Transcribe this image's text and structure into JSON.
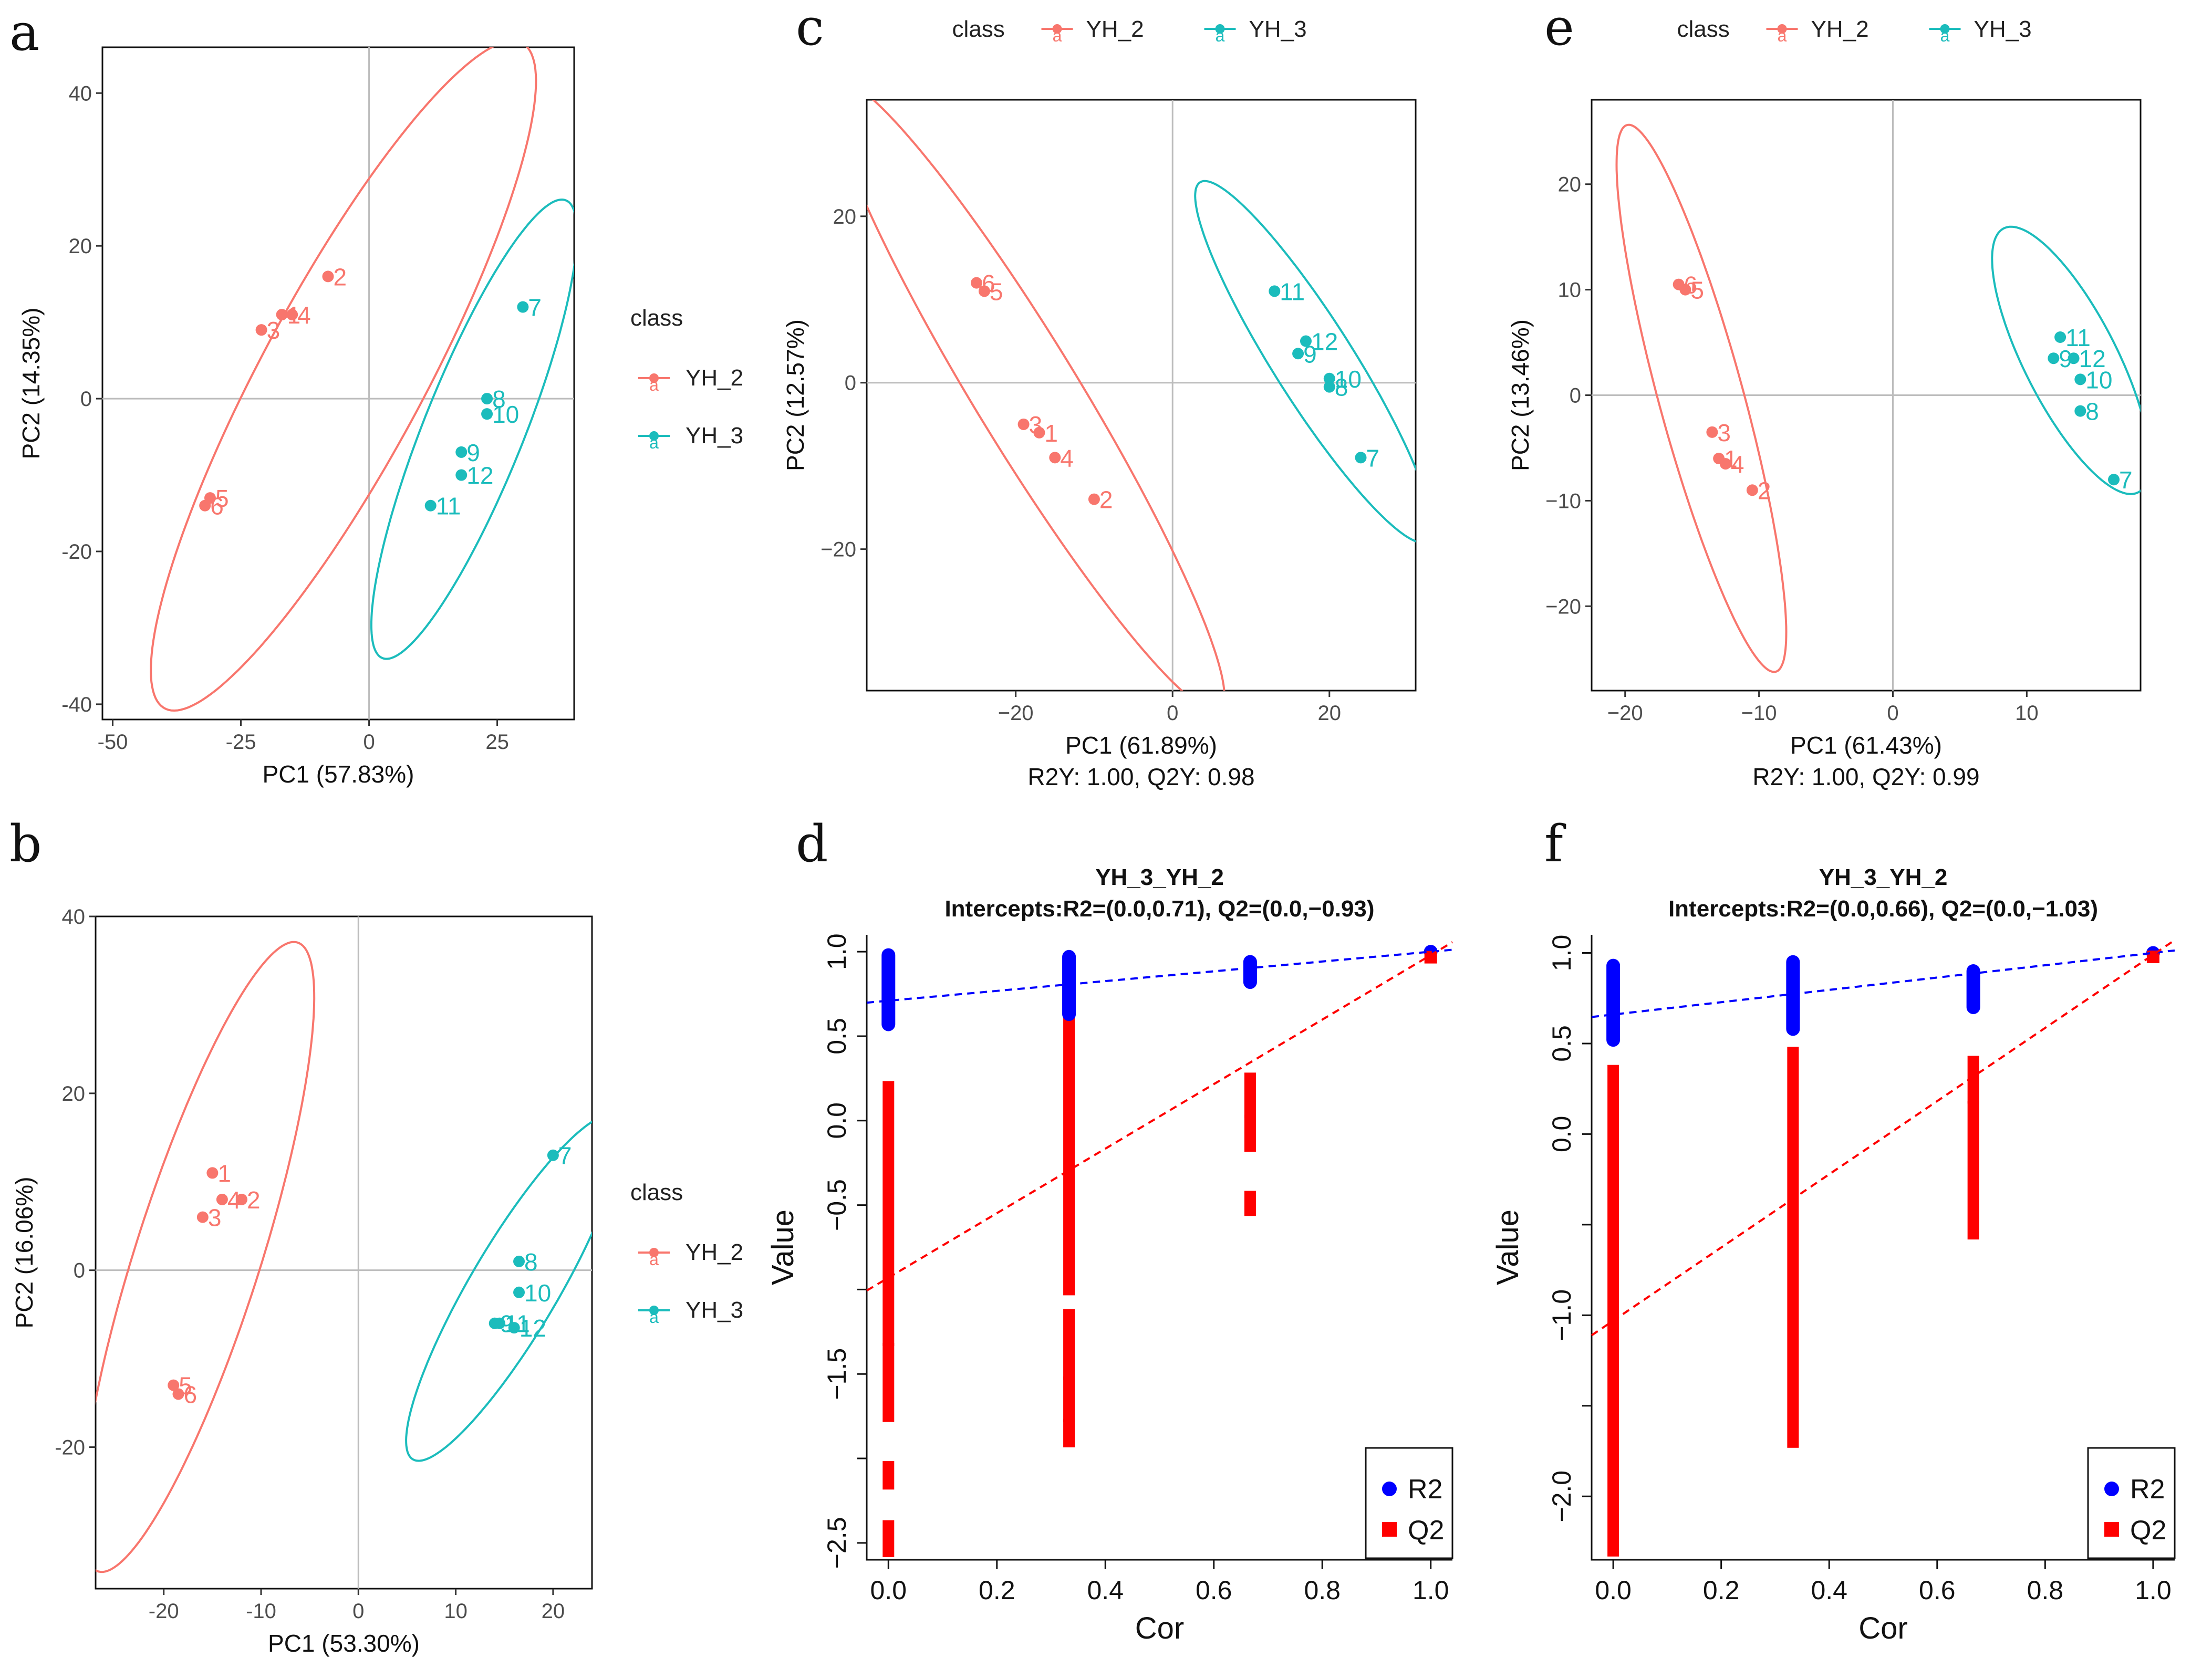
{
  "colors": {
    "yh2": "#F8766D",
    "yh3": "#1BBCBC",
    "r2": "#0000FF",
    "q2": "#FF0000",
    "refline": "#bdbdbd"
  },
  "chart_data": [
    {
      "id": "a",
      "letter": "a",
      "type": "scatter",
      "xlabel": "PC1 (57.83%)",
      "ylabel": "PC2 (14.35%)",
      "subtitle": "",
      "xlim": [
        -52,
        40
      ],
      "ylim": [
        -42,
        46
      ],
      "xticks": [
        -50,
        -25,
        0,
        25
      ],
      "xtick_labels": [
        "-50",
        "-25",
        "0",
        "25"
      ],
      "yticks": [
        -40,
        -20,
        0,
        20,
        40
      ],
      "ytick_labels": [
        "-40",
        "-20",
        "0",
        "20",
        "40"
      ],
      "legend_position": "right",
      "legend": {
        "title": "class",
        "entries": [
          "YH_2",
          "YH_3"
        ],
        "glyph": "a"
      },
      "series": [
        {
          "name": "YH_2",
          "color_key": "yh2",
          "points": [
            {
              "label": "2",
              "x": -8,
              "y": 16
            },
            {
              "label": "1",
              "x": -17,
              "y": 11
            },
            {
              "label": "4",
              "x": -15,
              "y": 11
            },
            {
              "label": "3",
              "x": -21,
              "y": 9
            },
            {
              "label": "5",
              "x": -31,
              "y": -13
            },
            {
              "label": "6",
              "x": -32,
              "y": -14
            }
          ],
          "ellipse": {
            "cx": -5,
            "cy": 3,
            "rx": 56,
            "ry": 14,
            "angle": 50
          }
        },
        {
          "name": "YH_3",
          "color_key": "yh3",
          "points": [
            {
              "label": "7",
              "x": 30,
              "y": 12
            },
            {
              "label": "8",
              "x": 23,
              "y": 0
            },
            {
              "label": "10",
              "x": 23,
              "y": -2
            },
            {
              "label": "9",
              "x": 18,
              "y": -7
            },
            {
              "label": "12",
              "x": 18,
              "y": -10
            },
            {
              "label": "11",
              "x": 12,
              "y": -14
            }
          ],
          "ellipse": {
            "cx": 20.5,
            "cy": -4,
            "rx": 35,
            "ry": 9,
            "angle": 58
          }
        }
      ]
    },
    {
      "id": "b",
      "letter": "b",
      "type": "scatter",
      "xlabel": "PC1 (53.30%)",
      "ylabel": "PC2 (16.06%)",
      "subtitle": "",
      "xlim": [
        -27,
        24
      ],
      "ylim": [
        -36,
        40
      ],
      "xticks": [
        -20,
        -10,
        0,
        10,
        20
      ],
      "xtick_labels": [
        "-20",
        "-10",
        "0",
        "10",
        "20"
      ],
      "yticks": [
        -20,
        0,
        20,
        40
      ],
      "ytick_labels": [
        "-20",
        "0",
        "20",
        "40"
      ],
      "legend_position": "right",
      "legend": {
        "title": "class",
        "entries": [
          "YH_2",
          "YH_3"
        ],
        "glyph": "a"
      },
      "series": [
        {
          "name": "YH_2",
          "color_key": "yh2",
          "points": [
            {
              "label": "1",
              "x": -15,
              "y": 11
            },
            {
              "label": "4",
              "x": -14,
              "y": 8
            },
            {
              "label": "2",
              "x": -12,
              "y": 8
            },
            {
              "label": "3",
              "x": -16,
              "y": 6
            },
            {
              "label": "5",
              "x": -19,
              "y": -13
            },
            {
              "label": "6",
              "x": -18.5,
              "y": -14
            }
          ],
          "ellipse": {
            "cx": -16.5,
            "cy": 1.5,
            "rx": 37,
            "ry": 6.5,
            "angle": 74
          }
        },
        {
          "name": "YH_3",
          "color_key": "yh3",
          "points": [
            {
              "label": "7",
              "x": 20,
              "y": 13
            },
            {
              "label": "8",
              "x": 16.5,
              "y": 1
            },
            {
              "label": "10",
              "x": 16.5,
              "y": -2.5
            },
            {
              "label": "9",
              "x": 14,
              "y": -6
            },
            {
              "label": "11",
              "x": 14.5,
              "y": -6
            },
            {
              "label": "12",
              "x": 16,
              "y": -6.5
            }
          ],
          "ellipse": {
            "cx": 16,
            "cy": -2,
            "rx": 22,
            "ry": 4.6,
            "angle": 62
          }
        }
      ]
    },
    {
      "id": "c",
      "letter": "c",
      "type": "scatter",
      "xlabel": "PC1 (61.89%)",
      "ylabel": "PC2 (12.57%)",
      "subtitle": "R2Y: 1.00, Q2Y: 0.98",
      "xlim": [
        -39,
        31
      ],
      "ylim": [
        -37,
        34
      ],
      "xticks": [
        -20,
        0,
        20
      ],
      "xtick_labels": [
        "−20",
        "0",
        "20"
      ],
      "yticks": [
        -20,
        0,
        20
      ],
      "ytick_labels": [
        "−20",
        "0",
        "20"
      ],
      "legend_position": "top",
      "legend": {
        "title": "class",
        "entries": [
          "YH_2",
          "YH_3"
        ],
        "glyph": "a"
      },
      "series": [
        {
          "name": "YH_2",
          "color_key": "yh2",
          "points": [
            {
              "label": "6",
              "x": -25,
              "y": 12
            },
            {
              "label": "5",
              "x": -24,
              "y": 11
            },
            {
              "label": "3",
              "x": -19,
              "y": -5
            },
            {
              "label": "1",
              "x": -17,
              "y": -6
            },
            {
              "label": "4",
              "x": -15,
              "y": -9
            },
            {
              "label": "2",
              "x": -10,
              "y": -14
            }
          ],
          "ellipse": {
            "cx": -18.5,
            "cy": -1.5,
            "rx": 45,
            "ry": 6.5,
            "angle": -57
          }
        },
        {
          "name": "YH_3",
          "color_key": "yh3",
          "points": [
            {
              "label": "11",
              "x": 13,
              "y": 11
            },
            {
              "label": "12",
              "x": 17,
              "y": 5
            },
            {
              "label": "9",
              "x": 16,
              "y": 3.5
            },
            {
              "label": "10",
              "x": 20,
              "y": 0.5
            },
            {
              "label": "8",
              "x": 20,
              "y": -0.5
            },
            {
              "label": "7",
              "x": 24,
              "y": -9
            }
          ],
          "ellipse": {
            "cx": 18,
            "cy": 2.5,
            "rx": 26,
            "ry": 5,
            "angle": -56
          }
        }
      ]
    },
    {
      "id": "e",
      "letter": "e",
      "type": "scatter",
      "xlabel": "PC1 (61.43%)",
      "ylabel": "PC2 (13.46%)",
      "subtitle": "R2Y: 1.00, Q2Y: 0.99",
      "xlim": [
        -22.5,
        18.5
      ],
      "ylim": [
        -28,
        28
      ],
      "xticks": [
        -20,
        -10,
        0,
        10
      ],
      "xtick_labels": [
        "−20",
        "−10",
        "0",
        "10"
      ],
      "yticks": [
        -20,
        -10,
        0,
        10,
        20
      ],
      "ytick_labels": [
        "−20",
        "−10",
        "0",
        "10",
        "20"
      ],
      "legend_position": "top",
      "legend": {
        "title": "class",
        "entries": [
          "YH_2",
          "YH_3"
        ],
        "glyph": "a"
      },
      "series": [
        {
          "name": "YH_2",
          "color_key": "yh2",
          "points": [
            {
              "label": "6",
              "x": -16,
              "y": 10.5
            },
            {
              "label": "5",
              "x": -15.5,
              "y": 10
            },
            {
              "label": "3",
              "x": -13.5,
              "y": -3.5
            },
            {
              "label": "1",
              "x": -13,
              "y": -6
            },
            {
              "label": "4",
              "x": -12.5,
              "y": -6.5
            },
            {
              "label": "2",
              "x": -10.5,
              "y": -9
            }
          ],
          "ellipse": {
            "cx": -14.3,
            "cy": -0.3,
            "rx": 26.5,
            "ry": 3.2,
            "angle": -78
          }
        },
        {
          "name": "YH_3",
          "color_key": "yh3",
          "points": [
            {
              "label": "11",
              "x": 12.5,
              "y": 5.5
            },
            {
              "label": "9",
              "x": 12,
              "y": 3.5
            },
            {
              "label": "12",
              "x": 13.5,
              "y": 3.5
            },
            {
              "label": "10",
              "x": 14,
              "y": 1.5
            },
            {
              "label": "8",
              "x": 14,
              "y": -1.5
            },
            {
              "label": "7",
              "x": 16.5,
              "y": -8
            }
          ],
          "ellipse": {
            "cx": 13.3,
            "cy": 3.3,
            "rx": 13.5,
            "ry": 3.6,
            "angle": -69
          }
        }
      ]
    },
    {
      "id": "d",
      "letter": "d",
      "type": "scatter",
      "title": "YH_3_YH_2",
      "subtitle": "Intercepts:R2=(0.0,0.71), Q2=(0.0,−0.93)",
      "xlabel": "Cor",
      "ylabel": "Value",
      "xlim": [
        -0.04,
        1.04
      ],
      "ylim": [
        -2.6,
        1.1
      ],
      "xticks": [
        0,
        0.2,
        0.4,
        0.6,
        0.8,
        1.0
      ],
      "xtick_labels": [
        "0.0",
        "0.2",
        "0.4",
        "0.6",
        "0.8",
        "1.0"
      ],
      "yticks": [
        1.0,
        0.5,
        0.0,
        -0.5,
        -1.0,
        -1.5,
        -2.0,
        -2.5
      ],
      "ytick_labels": [
        "1.0",
        "0.5",
        "0.0",
        "−0.5",
        "",
        "−1.5",
        "",
        "−2.5"
      ],
      "legend_position": "bottom-right",
      "legend": {
        "entries": [
          "R2",
          "Q2"
        ]
      },
      "r2_clusters": [
        {
          "x": 0.0,
          "min": 0.57,
          "max": 0.98
        },
        {
          "x": 0.333,
          "min": 0.63,
          "max": 0.97
        },
        {
          "x": 0.667,
          "min": 0.82,
          "max": 0.94
        }
      ],
      "q2_clusters": [
        {
          "x": 0.0,
          "segments": [
            [
              0.2,
              -1.3
            ],
            [
              -1.35,
              -1.75
            ],
            [
              -2.05,
              -2.15
            ],
            [
              -2.4,
              -2.55
            ]
          ]
        },
        {
          "x": 0.333,
          "segments": [
            [
              0.65,
              -1.0
            ],
            [
              -1.15,
              -1.5
            ],
            [
              -1.55,
              -1.75
            ],
            [
              -1.8,
              -1.9
            ]
          ]
        },
        {
          "x": 0.667,
          "segments": [
            [
              0.25,
              0.05
            ],
            [
              0.0,
              -0.15
            ],
            [
              -0.45,
              -0.53
            ]
          ]
        }
      ],
      "r2_orig": 1.0,
      "q2_orig": 0.98,
      "r2_line": {
        "intercept": 0.71,
        "slope": 0.29
      },
      "q2_line": {
        "intercept": -0.93,
        "slope": 1.91
      }
    },
    {
      "id": "f",
      "letter": "f",
      "type": "scatter",
      "title": "YH_3_YH_2",
      "subtitle": "Intercepts:R2=(0.0,0.66), Q2=(0.0,−1.03)",
      "xlabel": "Cor",
      "ylabel": "Value",
      "xlim": [
        -0.04,
        1.04
      ],
      "ylim": [
        -2.35,
        1.1
      ],
      "xticks": [
        0,
        0.2,
        0.4,
        0.6,
        0.8,
        1.0
      ],
      "xtick_labels": [
        "0.0",
        "0.2",
        "0.4",
        "0.6",
        "0.8",
        "1.0"
      ],
      "yticks": [
        1.0,
        0.5,
        0.0,
        -0.5,
        -1.0,
        -1.5,
        -2.0
      ],
      "ytick_labels": [
        "1.0",
        "0.5",
        "0.0",
        "",
        "−1.0",
        "",
        "−2.0"
      ],
      "legend_position": "bottom-right",
      "legend": {
        "entries": [
          "R2",
          "Q2"
        ]
      },
      "r2_clusters": [
        {
          "x": 0.0,
          "min": 0.52,
          "max": 0.93
        },
        {
          "x": 0.333,
          "min": 0.58,
          "max": 0.95
        },
        {
          "x": 0.667,
          "min": 0.7,
          "max": 0.9
        }
      ],
      "q2_clusters": [
        {
          "x": 0.0,
          "segments": [
            [
              0.35,
              -2.3
            ]
          ]
        },
        {
          "x": 0.333,
          "segments": [
            [
              0.45,
              -1.7
            ]
          ]
        },
        {
          "x": 0.667,
          "segments": [
            [
              0.4,
              0.2
            ],
            [
              0.15,
              -0.55
            ]
          ]
        }
      ],
      "r2_orig": 1.0,
      "q2_orig": 0.99,
      "r2_line": {
        "intercept": 0.66,
        "slope": 0.34
      },
      "q2_line": {
        "intercept": -1.03,
        "slope": 2.02
      }
    }
  ]
}
